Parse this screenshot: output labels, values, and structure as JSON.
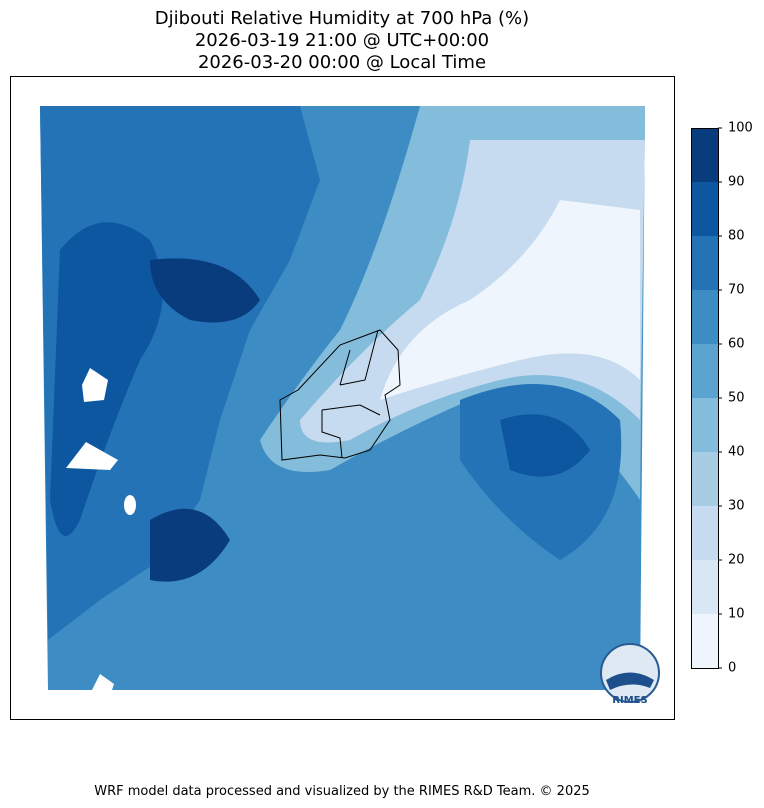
{
  "title": [
    "Djibouti Relative Humidity at 700 hPa (%)",
    "2026-03-19 21:00 @ UTC+00:00",
    "2026-03-20 00:00 @ Local Time"
  ],
  "colorbar": {
    "ticks": [
      0,
      10,
      20,
      30,
      40,
      50,
      60,
      70,
      80,
      90,
      100
    ],
    "colors": [
      "#eff5fc",
      "#d9e7f5",
      "#c6dbef",
      "#a6cde3",
      "#84bcdb",
      "#5ca4d0",
      "#3d8dc4",
      "#2373b6",
      "#0d57a1",
      "#093c7c"
    ]
  },
  "logo_text": "RIMES",
  "footer": "WRF model data processed and visualized by the RIMES R&D Team. © 2025"
}
